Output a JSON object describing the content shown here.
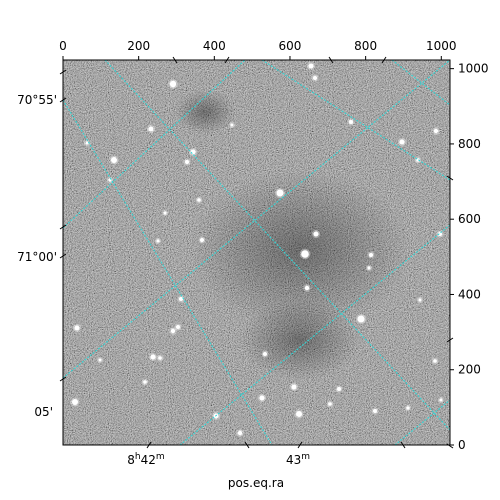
{
  "figure": {
    "xlabel": "pos.eq.ra",
    "ylabel": "",
    "pixel_axis_top": {
      "ticks": [
        0,
        200,
        400,
        600,
        800,
        1000
      ],
      "labels": [
        "0",
        "200",
        "400",
        "600",
        "800",
        "1000"
      ]
    },
    "pixel_axis_right": {
      "ticks": [
        0,
        200,
        400,
        600,
        800,
        1000
      ],
      "labels": [
        "0",
        "200",
        "400",
        "600",
        "800",
        "1000"
      ]
    },
    "ra_axis_bottom": {
      "labels": [
        "8h42m",
        "43m"
      ],
      "label_parts": [
        {
          "hours": "8",
          "hunit": "h",
          "minutes": "42",
          "munit": "m"
        },
        {
          "hours": "",
          "hunit": "",
          "minutes": "43",
          "munit": "m"
        }
      ]
    },
    "dec_axis_left": {
      "labels": [
        "70°55'",
        "71°00'",
        "05'"
      ]
    },
    "grid_color": "#33d6d6",
    "frame_color": "#000000",
    "image_style": "grayscale star field"
  }
}
